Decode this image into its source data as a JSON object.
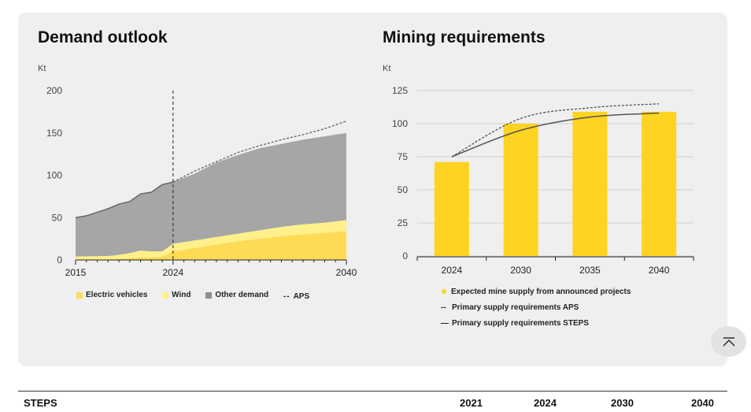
{
  "left_title": "Demand outlook",
  "right_title": "Mining requirements",
  "colors": {
    "ev": "#fddb55",
    "wind": "#fff08a",
    "other": "#a6a6a6",
    "bar": "#fed321",
    "line": "#555555"
  },
  "chart_data": [
    {
      "type": "area",
      "title": "Demand outlook",
      "ylabel": "Kt",
      "ylim": [
        0,
        200
      ],
      "yticks": [
        0,
        50,
        100,
        150,
        200
      ],
      "xlim": [
        2015,
        2040
      ],
      "xticks": [
        2015,
        2024,
        2040
      ],
      "marker_year": 2024,
      "series": [
        {
          "name": "Electric vehicles",
          "x": [
            2015,
            2018,
            2019,
            2020,
            2021,
            2022,
            2023,
            2024,
            2026,
            2028,
            2030,
            2032,
            2034,
            2036,
            2038,
            2040
          ],
          "values": [
            0,
            0.5,
            1,
            2,
            3,
            3,
            4,
            10,
            14,
            18,
            22,
            25,
            28,
            30,
            32,
            34
          ]
        },
        {
          "name": "Wind",
          "x": [
            2015,
            2018,
            2019,
            2020,
            2021,
            2022,
            2023,
            2024,
            2026,
            2028,
            2030,
            2032,
            2034,
            2036,
            2038,
            2040
          ],
          "values": [
            4,
            4,
            5,
            6,
            8,
            7,
            6,
            9,
            9,
            9,
            9,
            10,
            11,
            12,
            12,
            13
          ]
        },
        {
          "name": "Other demand",
          "x": [
            2015,
            2016,
            2017,
            2018,
            2019,
            2020,
            2021,
            2022,
            2023,
            2024,
            2026,
            2028,
            2030,
            2032,
            2034,
            2036,
            2038,
            2040
          ],
          "values": [
            46,
            48,
            52,
            56,
            60,
            61,
            67,
            70,
            79,
            73,
            79,
            88,
            93,
            97,
            98,
            100,
            102,
            103
          ]
        },
        {
          "name": "APS",
          "x": [
            2024,
            2026,
            2028,
            2030,
            2032,
            2034,
            2036,
            2038,
            2040
          ],
          "values": [
            92,
            105,
            116,
            127,
            135,
            142,
            148,
            155,
            164
          ]
        }
      ],
      "legend": [
        "Electric vehicles",
        "Wind",
        "Other demand",
        "APS"
      ]
    },
    {
      "type": "bar",
      "title": "Mining requirements",
      "ylabel": "Kt",
      "ylim": [
        0,
        125
      ],
      "yticks": [
        0,
        25,
        50,
        75,
        100,
        125
      ],
      "categories": [
        "2024",
        "2030",
        "2035",
        "2040"
      ],
      "series": [
        {
          "name": "Expected mine supply from announced projects",
          "values": [
            71,
            100,
            109,
            109
          ]
        },
        {
          "name": "Primary supply requirements APS",
          "values": [
            75,
            104,
            112,
            115
          ]
        },
        {
          "name": "Primary supply requirements STEPS",
          "values": [
            75,
            95,
            105,
            108
          ]
        }
      ],
      "legend": [
        "Expected mine supply from announced projects",
        "Primary supply requirements APS",
        "Primary supply requirements STEPS"
      ]
    }
  ],
  "table": {
    "label": "STEPS",
    "years": [
      "2021",
      "2024",
      "2030",
      "2040"
    ]
  }
}
